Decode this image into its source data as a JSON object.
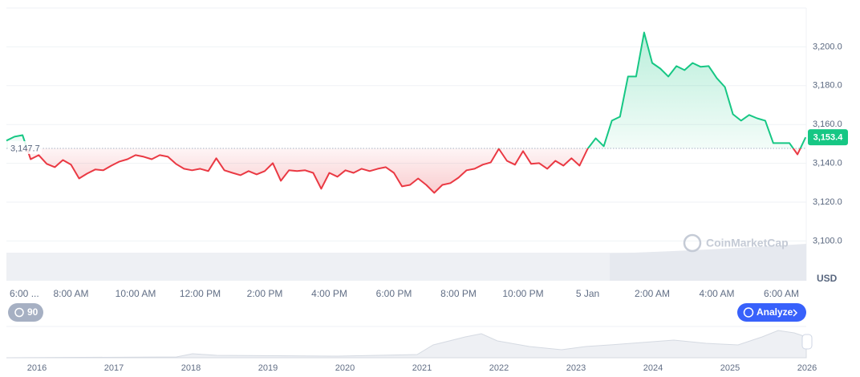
{
  "chart_data": {
    "type": "line",
    "x": [
      6,
      6.25,
      6.5,
      6.75,
      7,
      7.25,
      7.5,
      7.75,
      8,
      8.25,
      8.5,
      8.75,
      9,
      9.25,
      9.5,
      9.75,
      10,
      10.25,
      10.5,
      10.75,
      11,
      11.25,
      11.5,
      11.75,
      12,
      12.25,
      12.5,
      12.75,
      13,
      13.25,
      13.5,
      13.75,
      14,
      14.25,
      14.5,
      14.75,
      15,
      15.25,
      15.5,
      15.75,
      16,
      16.25,
      16.5,
      16.75,
      17,
      17.25,
      17.5,
      17.75,
      18,
      18.25,
      18.5,
      18.75,
      19,
      19.25,
      19.5,
      19.75,
      20,
      20.25,
      20.5,
      20.75,
      21,
      21.25,
      21.5,
      21.75,
      22,
      22.25,
      22.5,
      22.75,
      23,
      23.25,
      23.5,
      23.75,
      24,
      24.25,
      24.5,
      24.75,
      25,
      25.25,
      25.5,
      25.75,
      26,
      26.25,
      26.5,
      26.75,
      27,
      27.25,
      27.5,
      27.75,
      28,
      28.25,
      28.5,
      28.75,
      29,
      29.25,
      29.5,
      29.75,
      30,
      30.25,
      30.5,
      30.75
    ],
    "values": [
      3151.7,
      3153.7,
      3154.5,
      3142.1,
      3144.2,
      3139.7,
      3138.0,
      3141.7,
      3139.3,
      3132.2,
      3134.7,
      3136.8,
      3136.4,
      3138.8,
      3140.9,
      3142.1,
      3144.2,
      3143.4,
      3142.1,
      3144.2,
      3143.4,
      3139.7,
      3137.2,
      3136.4,
      3137.2,
      3136.0,
      3142.6,
      3136.4,
      3135.1,
      3133.9,
      3136.0,
      3134.3,
      3136.0,
      3140.1,
      3131.0,
      3136.4,
      3136.0,
      3136.4,
      3135.1,
      3126.9,
      3135.1,
      3133.1,
      3136.4,
      3135.1,
      3137.2,
      3136.0,
      3137.2,
      3138.0,
      3135.1,
      3128.1,
      3128.9,
      3132.2,
      3128.9,
      3124.8,
      3128.9,
      3129.8,
      3132.6,
      3136.4,
      3137.2,
      3139.3,
      3140.5,
      3147.5,
      3141.3,
      3139.3,
      3146.3,
      3139.7,
      3140.1,
      3137.2,
      3141.3,
      3138.8,
      3142.6,
      3138.8,
      3147.5,
      3152.9,
      3148.8,
      3162.0,
      3164.0,
      3184.7,
      3184.7,
      3207.4,
      3191.7,
      3188.8,
      3184.7,
      3190.1,
      3188.0,
      3191.7,
      3189.7,
      3190.1,
      3183.9,
      3179.3,
      3165.3,
      3162.0,
      3164.9,
      3163.2,
      3162.0,
      3150.4,
      3150.4,
      3150.4,
      3144.6,
      3153.4
    ],
    "up_color": "#16c784",
    "down_color": "#ea3943",
    "baseline": {
      "value": 3147.7,
      "label": "3,147.7"
    },
    "price_tag": {
      "value": 3153.4,
      "label": "3,153.4"
    },
    "xlim": [
      6,
      30.77
    ],
    "xticks": [
      {
        "value": 6,
        "label": "6:00 ..."
      },
      {
        "value": 8,
        "label": "8:00 AM"
      },
      {
        "value": 10,
        "label": "10:00 AM"
      },
      {
        "value": 12,
        "label": "12:00 PM"
      },
      {
        "value": 14,
        "label": "2:00 PM"
      },
      {
        "value": 16,
        "label": "4:00 PM"
      },
      {
        "value": 18,
        "label": "6:00 PM"
      },
      {
        "value": 20,
        "label": "8:00 PM"
      },
      {
        "value": 22,
        "label": "10:00 PM"
      },
      {
        "value": 24,
        "label": "5 Jan"
      },
      {
        "value": 26,
        "label": "2:00 AM"
      },
      {
        "value": 28,
        "label": "4:00 AM"
      },
      {
        "value": 30,
        "label": "6:00 AM"
      }
    ],
    "ylim": [
      3080,
      3220
    ],
    "yticks": [
      {
        "value": 3100,
        "label": "3,100.0"
      },
      {
        "value": 3120,
        "label": "3,120.0"
      },
      {
        "value": 3140,
        "label": "3,140.0"
      },
      {
        "value": 3160,
        "label": "3,160.0"
      },
      {
        "value": 3180,
        "label": "3,180.0"
      },
      {
        "value": 3200,
        "label": "3,200.0"
      }
    ],
    "grid": true,
    "currency": "USD",
    "watermark": "CoinMarketCap"
  },
  "controls": {
    "zoom": "90",
    "analyze": "Analyze"
  },
  "navigator": {
    "labels": [
      "2016",
      "2017",
      "2018",
      "2019",
      "2020",
      "2021",
      "2022",
      "2023",
      "2024",
      "2025",
      "2026"
    ]
  }
}
